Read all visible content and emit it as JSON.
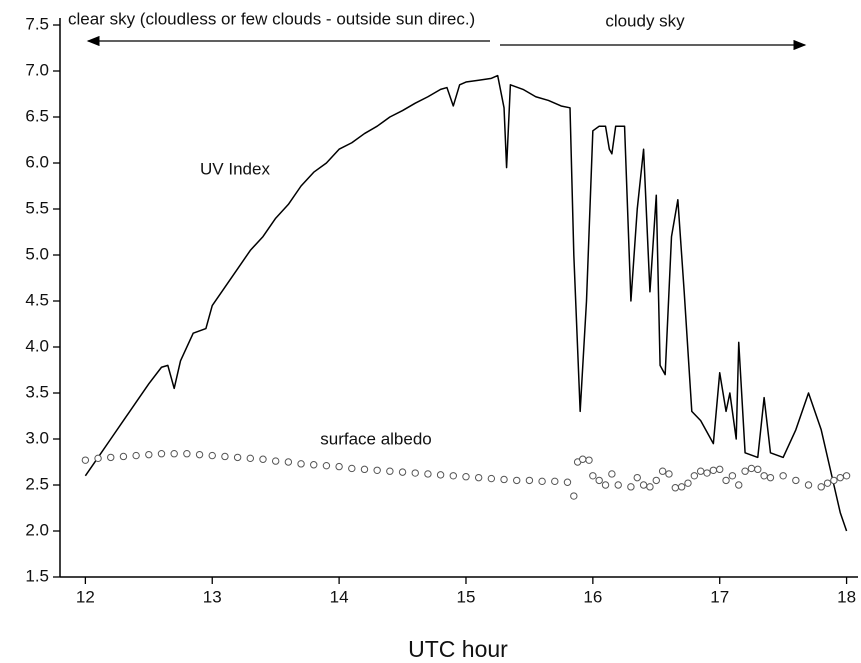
{
  "chart_data": {
    "type": "line",
    "x_label": "UTC hour",
    "annotations": [
      "clear sky (cloudless or few clouds - outside sun direc.)",
      "cloudy sky"
    ],
    "xlim": [
      11.8,
      18.09
    ],
    "xticks": [
      12,
      13,
      14,
      15,
      16,
      17,
      18
    ],
    "ylim": [
      1.5,
      7.5
    ],
    "yticks": [
      1.5,
      {
        "value": 2,
        "label": "2.0"
      },
      2.5,
      {
        "value": 3,
        "label": "3.0"
      },
      3.5,
      {
        "value": 4,
        "label": "4.0"
      },
      4.5,
      {
        "value": 5,
        "label": "5.0"
      },
      5.5,
      {
        "value": 6,
        "label": "6.0"
      },
      6.5,
      {
        "value": 7,
        "label": "7.0"
      },
      7.5
    ],
    "grid": false,
    "series": [
      {
        "name": "UV Index",
        "color": "#000000",
        "mode": "line",
        "x": [
          12.0,
          12.1,
          12.2,
          12.3,
          12.4,
          12.5,
          12.6,
          12.65,
          12.7,
          12.75,
          12.85,
          12.95,
          13.0,
          13.1,
          13.2,
          13.3,
          13.4,
          13.5,
          13.6,
          13.7,
          13.8,
          13.9,
          14.0,
          14.1,
          14.2,
          14.3,
          14.4,
          14.5,
          14.6,
          14.7,
          14.8,
          14.85,
          14.9,
          14.95,
          15.0,
          15.1,
          15.2,
          15.25,
          15.3,
          15.32,
          15.35,
          15.45,
          15.55,
          15.65,
          15.75,
          15.82,
          15.85,
          15.9,
          15.95,
          16.0,
          16.05,
          16.1,
          16.13,
          16.15,
          16.18,
          16.25,
          16.3,
          16.35,
          16.4,
          16.45,
          16.5,
          16.53,
          16.57,
          16.62,
          16.67,
          16.72,
          16.78,
          16.85,
          16.95,
          17.0,
          17.05,
          17.08,
          17.13,
          17.15,
          17.2,
          17.3,
          17.35,
          17.4,
          17.5,
          17.6,
          17.7,
          17.8,
          17.9,
          17.95,
          18.0
        ],
        "values": [
          2.6,
          2.8,
          3.0,
          3.2,
          3.4,
          3.6,
          3.78,
          3.8,
          3.55,
          3.85,
          4.15,
          4.2,
          4.45,
          4.65,
          4.85,
          5.05,
          5.2,
          5.4,
          5.55,
          5.75,
          5.9,
          6.0,
          6.15,
          6.22,
          6.32,
          6.4,
          6.5,
          6.57,
          6.65,
          6.72,
          6.8,
          6.82,
          6.62,
          6.85,
          6.88,
          6.9,
          6.92,
          6.95,
          6.6,
          5.95,
          6.85,
          6.8,
          6.72,
          6.68,
          6.62,
          6.6,
          5.0,
          3.3,
          4.5,
          6.35,
          6.4,
          6.4,
          6.15,
          6.1,
          6.4,
          6.4,
          4.5,
          5.5,
          6.15,
          4.6,
          5.65,
          3.8,
          3.7,
          5.2,
          5.6,
          4.6,
          3.3,
          3.2,
          2.95,
          3.72,
          3.3,
          3.5,
          3.0,
          4.05,
          2.85,
          2.8,
          3.45,
          2.85,
          2.8,
          3.1,
          3.5,
          3.1,
          2.5,
          2.2,
          2.0
        ]
      },
      {
        "name": "surface albedo",
        "color": "#555555",
        "mode": "markers",
        "x": [
          12.0,
          12.1,
          12.2,
          12.3,
          12.4,
          12.5,
          12.6,
          12.7,
          12.8,
          12.9,
          13.0,
          13.1,
          13.2,
          13.3,
          13.4,
          13.5,
          13.6,
          13.7,
          13.8,
          13.9,
          14.0,
          14.1,
          14.2,
          14.3,
          14.4,
          14.5,
          14.6,
          14.7,
          14.8,
          14.9,
          15.0,
          15.1,
          15.2,
          15.3,
          15.4,
          15.5,
          15.6,
          15.7,
          15.8,
          15.85,
          15.88,
          15.92,
          15.97,
          16.0,
          16.05,
          16.1,
          16.15,
          16.2,
          16.3,
          16.35,
          16.4,
          16.45,
          16.5,
          16.55,
          16.6,
          16.65,
          16.7,
          16.75,
          16.8,
          16.85,
          16.9,
          16.95,
          17.0,
          17.05,
          17.1,
          17.15,
          17.2,
          17.25,
          17.3,
          17.35,
          17.4,
          17.5,
          17.6,
          17.7,
          17.8,
          17.85,
          17.9,
          17.95,
          18.0
        ],
        "values": [
          2.77,
          2.79,
          2.8,
          2.81,
          2.82,
          2.83,
          2.84,
          2.84,
          2.84,
          2.83,
          2.82,
          2.81,
          2.8,
          2.79,
          2.78,
          2.76,
          2.75,
          2.73,
          2.72,
          2.71,
          2.7,
          2.68,
          2.67,
          2.66,
          2.65,
          2.64,
          2.63,
          2.62,
          2.61,
          2.6,
          2.59,
          2.58,
          2.57,
          2.56,
          2.55,
          2.55,
          2.54,
          2.54,
          2.53,
          2.38,
          2.75,
          2.78,
          2.77,
          2.6,
          2.55,
          2.5,
          2.62,
          2.5,
          2.48,
          2.58,
          2.5,
          2.48,
          2.55,
          2.65,
          2.62,
          2.47,
          2.48,
          2.52,
          2.6,
          2.65,
          2.63,
          2.66,
          2.67,
          2.55,
          2.6,
          2.5,
          2.65,
          2.68,
          2.67,
          2.6,
          2.58,
          2.6,
          2.55,
          2.5,
          2.48,
          2.52,
          2.55,
          2.58,
          2.6
        ]
      }
    ]
  }
}
